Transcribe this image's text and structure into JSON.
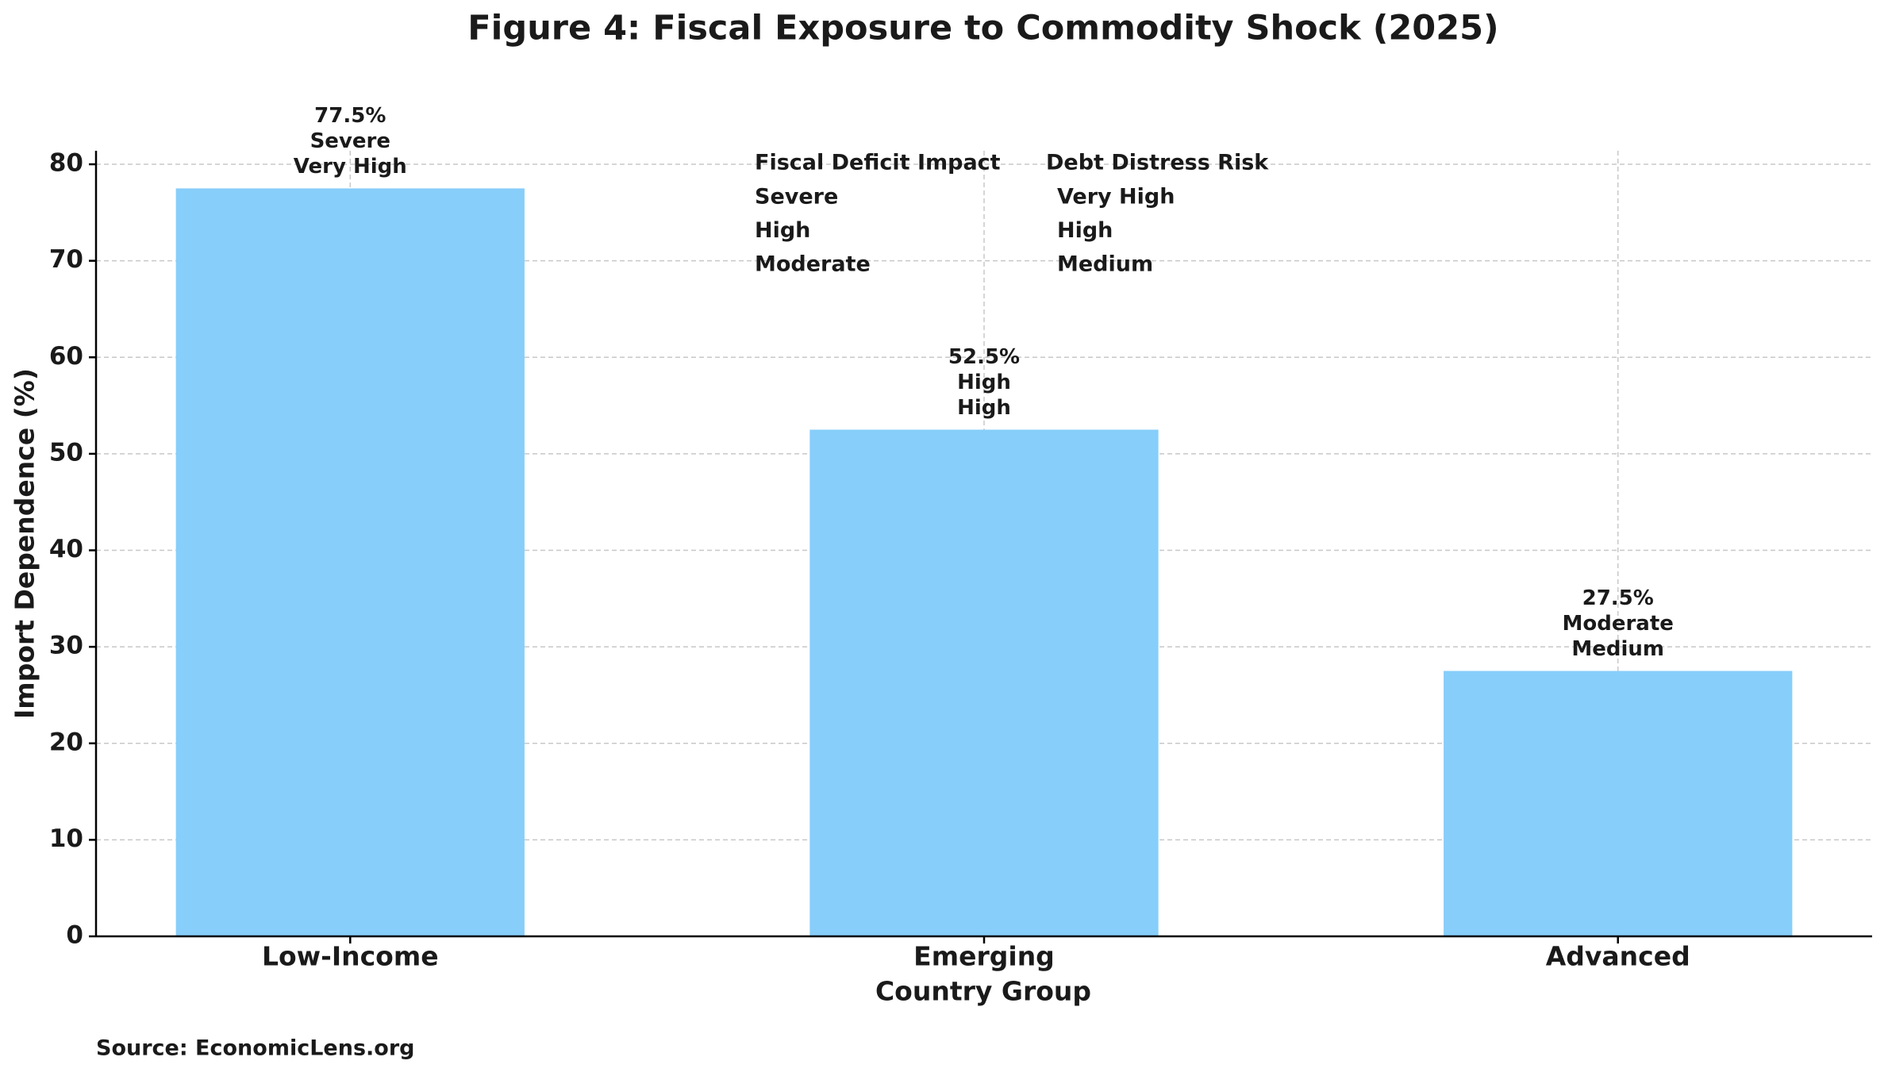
{
  "chart_data": {
    "type": "bar",
    "title": "Figure 4: Fiscal Exposure to Commodity Shock (2025)",
    "x_label": "Country Group",
    "y_label": "Import Dependence (%)",
    "categories": [
      "Low-Income",
      "Emerging",
      "Advanced"
    ],
    "values": [
      77.5,
      52.5,
      27.5
    ],
    "value_labels": [
      "77.5%",
      "52.5%",
      "27.5%"
    ],
    "fiscal_impact": [
      "Severe",
      "High",
      "Moderate"
    ],
    "debt_risk": [
      "Very High",
      "High",
      "Medium"
    ],
    "color": "#87cefa",
    "ylim": [
      0,
      81.4
    ],
    "yticks": [
      0,
      10,
      20,
      30,
      40,
      50,
      60,
      70,
      80
    ],
    "grid": true,
    "risk_table": {
      "headers": [
        "Fiscal Deficit Impact",
        "Debt Distress Risk"
      ],
      "rows": [
        [
          "Severe",
          "Very High"
        ],
        [
          "High",
          "High"
        ],
        [
          "Moderate",
          "Medium"
        ]
      ]
    },
    "source": "Source: EconomicLens.org"
  }
}
